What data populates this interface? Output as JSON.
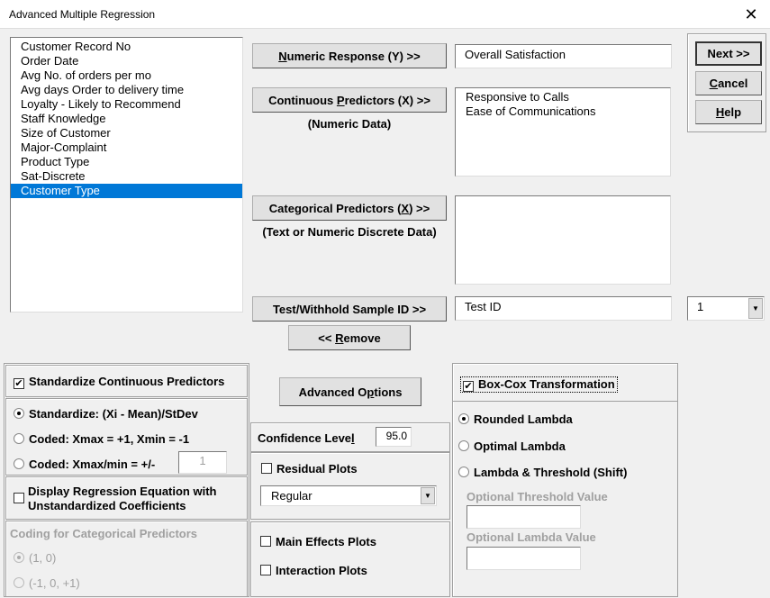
{
  "window": {
    "title": "Advanced Multiple Regression",
    "close_icon": "close-icon"
  },
  "variables": [
    "Customer Record No",
    "Order Date",
    "Avg No. of orders per mo",
    "Avg days Order to delivery time",
    "Loyalty - Likely to Recommend",
    "Staff Knowledge",
    "Size of Customer",
    "Major-Complaint",
    "Product Type",
    "Sat-Discrete",
    "Customer Type"
  ],
  "selected_variable": "Customer Type",
  "numeric_response": {
    "pre": "",
    "key": "N",
    "post": "umeric Response (Y) >>",
    "value": "Overall Satisfaction"
  },
  "continuous": {
    "pre": "Continuous ",
    "key": "P",
    "post": "redictors (X) >>",
    "note": "(Numeric Data)",
    "values": [
      "Responsive to Calls",
      "Ease of Communications"
    ]
  },
  "categorical": {
    "pre": "Categorical Predictors (",
    "key": "X",
    "post": ") >>",
    "note": "(Text or Numeric Discrete Data)",
    "values": []
  },
  "test": {
    "label": "Test/Withhold Sample ID >>",
    "value": "Test ID",
    "combo": "1"
  },
  "remove": {
    "pre": "<< ",
    "key": "R",
    "post": "emove"
  },
  "next": "Next >>",
  "cancel": {
    "key": "C",
    "post": "ancel"
  },
  "help": {
    "key": "H",
    "post": "elp"
  },
  "standardize": {
    "label": "Standardize Continuous Predictors",
    "checked": true,
    "opt1": "Standardize: (Xi - Mean)/StDev",
    "opt2": "Coded: Xmax = +1, Xmin = -1",
    "opt3": "Coded: Xmax/min = +/-",
    "opt3_value": "1",
    "selected": 1
  },
  "display_eq": {
    "line1": "Display Regression Equation with",
    "line2": "Unstandardized Coefficients",
    "checked": false
  },
  "coding": {
    "label": "Coding for Categorical Predictors",
    "opt1": "(1, 0)",
    "opt2": "(-1, 0, +1)",
    "selected": 1
  },
  "advanced": {
    "pre": "Advanced O",
    "key": "p",
    "post": "tions"
  },
  "confidence": {
    "pre": "Confidence Leve",
    "key": "l",
    "value": "95.0"
  },
  "residual": {
    "label": "Residual Plots",
    "checked": false,
    "type": "Regular"
  },
  "main_effects": {
    "label": "Main Effects Plots",
    "checked": false
  },
  "interaction": {
    "label": "Interaction Plots",
    "checked": false
  },
  "boxcox": {
    "label": "Box-Cox Transformation",
    "checked": true,
    "opt1": "Rounded Lambda",
    "opt2": "Optimal Lambda",
    "opt3": "Lambda & Threshold (Shift)",
    "selected": 1,
    "threshold_label": "Optional Threshold Value",
    "lambda_label": "Optional Lambda Value",
    "threshold_value": "",
    "lambda_value": ""
  }
}
